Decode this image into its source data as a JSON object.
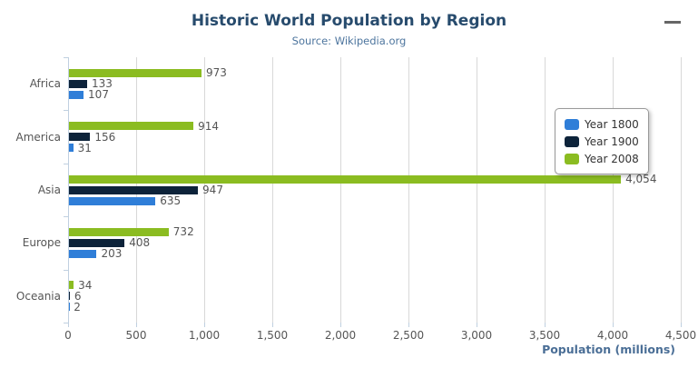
{
  "header": {
    "title": "Historic World Population by Region",
    "subtitle": "Source: Wikipedia.org"
  },
  "export_menu": {
    "icon": "hamburger-icon",
    "color": "#666666"
  },
  "chart_data": {
    "type": "bar",
    "orientation": "horizontal",
    "title": "Historic World Population by Region",
    "subtitle": "Source: Wikipedia.org",
    "categories": [
      "Africa",
      "America",
      "Asia",
      "Europe",
      "Oceania"
    ],
    "series": [
      {
        "name": "Year 1800",
        "color": "#2f7ed8",
        "values": [
          107,
          31,
          635,
          203,
          2
        ]
      },
      {
        "name": "Year 1900",
        "color": "#0d233a",
        "values": [
          133,
          156,
          947,
          408,
          6
        ]
      },
      {
        "name": "Year 2008",
        "color": "#8bbc21",
        "values": [
          973,
          914,
          4054,
          732,
          34
        ]
      }
    ],
    "series_display_order_top_to_bottom": [
      "Year 2008",
      "Year 1900",
      "Year 1800"
    ],
    "xlabel": "Population (millions)",
    "ylabel": "",
    "xlim": [
      0,
      4500
    ],
    "x_ticks": [
      0,
      500,
      1000,
      1500,
      2000,
      2500,
      3000,
      3500,
      4000,
      4500
    ],
    "x_tick_labels": [
      "0",
      "500",
      "1,000",
      "1,500",
      "2,000",
      "2,500",
      "3,000",
      "3,500",
      "4,000",
      "4,500"
    ],
    "grid": true,
    "data_labels": true,
    "legend_position": "right-top-floating",
    "legend_entries": [
      "Year 1800",
      "Year 1900",
      "Year 2008"
    ]
  },
  "colors": {
    "title": "#274b6d",
    "subtitle": "#4d759e",
    "axis_title": "#4a6e96",
    "tick_label": "#555555",
    "gridline": "#d8d8d8",
    "axis_line": "#c0d0e0",
    "legend_border": "#999999",
    "legend_text": "#333333",
    "background": "#ffffff"
  }
}
